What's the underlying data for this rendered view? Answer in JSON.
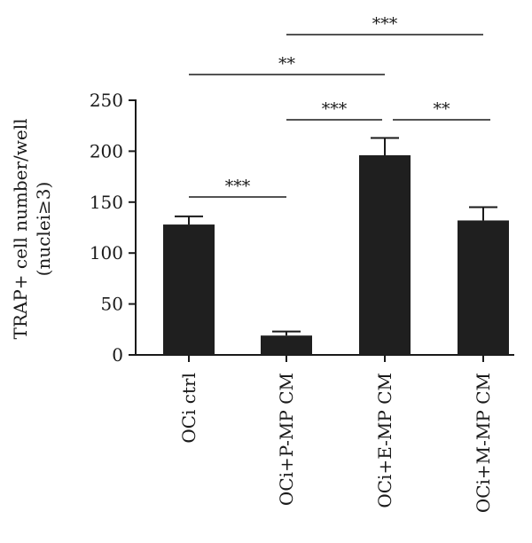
{
  "chart_data": {
    "type": "bar",
    "categories": [
      "OCi ctrl",
      "OCi+P-MP CM",
      "OCi+E-MP CM",
      "OCi+M-MP CM"
    ],
    "values": [
      128,
      19,
      196,
      132
    ],
    "errors": [
      8,
      4,
      17,
      13
    ],
    "ylabel_line1": "TRAP+ cell number/well",
    "ylabel_line2": "(nuclei≥3)",
    "ylim": [
      0,
      250
    ],
    "yticks": [
      0,
      50,
      100,
      150,
      200,
      250
    ],
    "bar_color": "#1f1f1f",
    "significance": [
      {
        "from": 0,
        "to": 1,
        "label": "***",
        "level": 0
      },
      {
        "from": 1,
        "to": 2,
        "label": "***",
        "level": 1
      },
      {
        "from": 2,
        "to": 3,
        "label": "**",
        "level": 1
      },
      {
        "from": 0,
        "to": 2,
        "label": "**",
        "level": 2
      },
      {
        "from": 1,
        "to": 3,
        "label": "***",
        "level": 3
      }
    ]
  }
}
